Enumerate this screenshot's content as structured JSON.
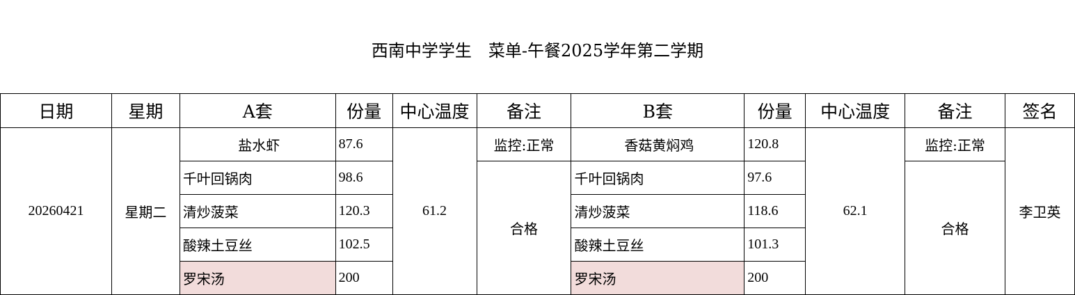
{
  "title": "西南中学学生　菜单-午餐2025学年第二学期",
  "headers": {
    "date": "日期",
    "weekday": "星期",
    "set_a": "A套",
    "portion_a": "份量",
    "temp_a": "中心温度",
    "remark_a": "备注",
    "set_b": "B套",
    "portion_b": "份量",
    "temp_b": "中心温度",
    "remark_b": "备注",
    "signature": "签名"
  },
  "row": {
    "date": "20260421",
    "weekday": "星期二",
    "set_a": {
      "dishes": [
        {
          "name": "盐水虾",
          "portion": "87.6"
        },
        {
          "name": "千叶回锅肉",
          "portion": "98.6"
        },
        {
          "name": "清炒菠菜",
          "portion": "120.3"
        },
        {
          "name": "酸辣土豆丝",
          "portion": "102.5"
        },
        {
          "name": "罗宋汤",
          "portion": "200"
        }
      ],
      "temp": "61.2",
      "monitor": "监控:正常",
      "remark": "合格"
    },
    "set_b": {
      "dishes": [
        {
          "name": "香菇黄焖鸡",
          "portion": "120.8"
        },
        {
          "name": "千叶回锅肉",
          "portion": "97.6"
        },
        {
          "name": "清炒菠菜",
          "portion": "118.6"
        },
        {
          "name": "酸辣土豆丝",
          "portion": "101.3"
        },
        {
          "name": "罗宋汤",
          "portion": "200"
        }
      ],
      "temp": "62.1",
      "monitor": "监控:正常",
      "remark": "合格"
    },
    "signature": "李卫英"
  },
  "colors": {
    "soup_highlight": "#f2dcdb",
    "border": "#000000"
  }
}
